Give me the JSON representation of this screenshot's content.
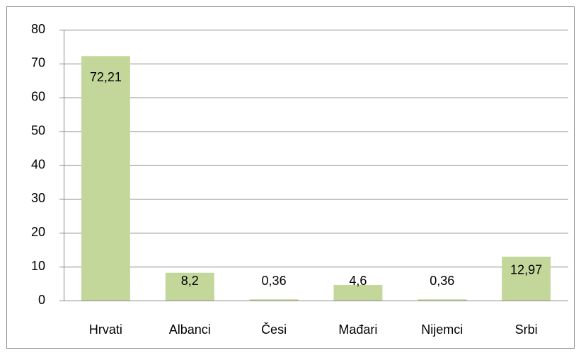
{
  "chart_data": {
    "type": "bar",
    "categories": [
      "Hrvati",
      "Albanci",
      "Česi",
      "Mađari",
      "Nijemci",
      "Srbi"
    ],
    "values": [
      72.21,
      8.2,
      0.36,
      4.6,
      0.36,
      12.97
    ],
    "value_labels": [
      "72,21",
      "8,2",
      "0,36",
      "4,6",
      "0,36",
      "12,97"
    ],
    "color": "#c4d79b",
    "ylim": [
      0,
      80
    ],
    "yticks": [
      0,
      10,
      20,
      30,
      40,
      50,
      60,
      70,
      80
    ],
    "grid": true
  }
}
